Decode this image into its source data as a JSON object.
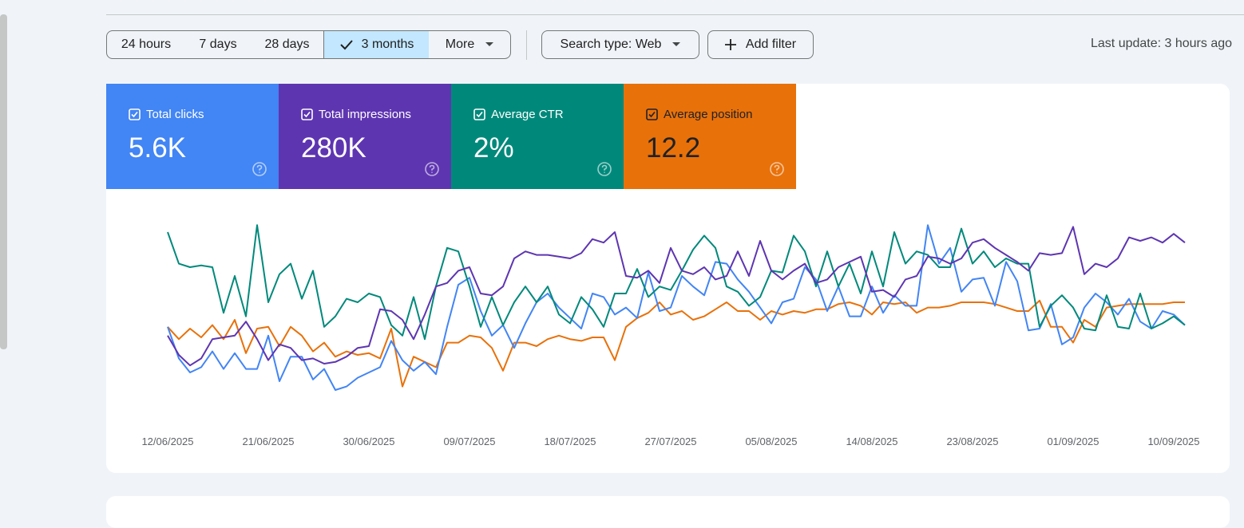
{
  "toolbar": {
    "ranges": [
      "24 hours",
      "7 days",
      "28 days",
      "3 months",
      "More"
    ],
    "search_type": "Search type: Web",
    "add_filter": "Add filter",
    "last_update": "Last update: 3 hours ago"
  },
  "summary": [
    "5.6K",
    "280K",
    "2%",
    "12.2"
  ],
  "chart_data": {
    "type": "line",
    "categories": [
      "12/06/2025",
      null,
      null,
      null,
      null,
      null,
      null,
      null,
      null,
      "21/06/2025",
      null,
      null,
      null,
      null,
      null,
      null,
      null,
      null,
      "30/06/2025",
      null,
      null,
      null,
      null,
      null,
      null,
      null,
      null,
      "09/07/2025",
      null,
      null,
      null,
      null,
      null,
      null,
      null,
      null,
      "18/07/2025",
      null,
      null,
      null,
      null,
      null,
      null,
      null,
      null,
      "27/07/2025",
      null,
      null,
      null,
      null,
      null,
      null,
      null,
      null,
      "05/08/2025",
      null,
      null,
      null,
      null,
      null,
      null,
      null,
      null,
      "14/08/2025",
      null,
      null,
      null,
      null,
      null,
      null,
      null,
      null,
      "23/08/2025",
      null,
      null,
      null,
      null,
      null,
      null,
      null,
      null,
      "01/09/2025",
      null,
      null,
      null,
      null,
      null,
      null,
      null,
      null,
      "10/09/2025",
      null
    ],
    "ylim": [
      0,
      100
    ],
    "series": [
      {
        "name": "Total clicks",
        "color": "#4285f4",
        "values": [
          41,
          23,
          15,
          18,
          27,
          17,
          26,
          17,
          17,
          36,
          10,
          24,
          24,
          11,
          17,
          5,
          7,
          12,
          15,
          18,
          33,
          22,
          16,
          21,
          14,
          41,
          65,
          69,
          50,
          36,
          42,
          29,
          43,
          55,
          60,
          52,
          46,
          40,
          60,
          58,
          48,
          52,
          46,
          72,
          50,
          52,
          70,
          64,
          59,
          78,
          77,
          68,
          61,
          52,
          43,
          55,
          57,
          75,
          68,
          50,
          64,
          47,
          47,
          64,
          49,
          59,
          53,
          53,
          99,
          77,
          86,
          61,
          68,
          69,
          53,
          78,
          67,
          39,
          40,
          54,
          31,
          35,
          52,
          60,
          55,
          48,
          57,
          44,
          40,
          50,
          48,
          42
        ]
      },
      {
        "name": "Total impressions",
        "color": "#5e35b1",
        "values": [
          36,
          25,
          19,
          23,
          34,
          35,
          36,
          44,
          34,
          22,
          31,
          29,
          22,
          23,
          20,
          21,
          24,
          29,
          30,
          51,
          50,
          45,
          34,
          48,
          64,
          66,
          73,
          75,
          60,
          59,
          64,
          80,
          84,
          82,
          82,
          81,
          80,
          83,
          91,
          89,
          95,
          70,
          69,
          73,
          66,
          86,
          73,
          71,
          75,
          68,
          70,
          84,
          70,
          90,
          73,
          68,
          73,
          77,
          66,
          68,
          75,
          78,
          81,
          61,
          62,
          58,
          68,
          70,
          81,
          80,
          77,
          80,
          89,
          91,
          86,
          82,
          78,
          73,
          83,
          82,
          83,
          98,
          71,
          77,
          75,
          80,
          92,
          90,
          92,
          89,
          94,
          89
        ]
      },
      {
        "name": "Average CTR",
        "color": "#00897b",
        "values": [
          95,
          77,
          75,
          76,
          75,
          49,
          70,
          47,
          99,
          55,
          71,
          77,
          57,
          73,
          41,
          47,
          57,
          55,
          60,
          58,
          42,
          36,
          58,
          34,
          64,
          86,
          84,
          64,
          41,
          58,
          42,
          55,
          64,
          55,
          64,
          48,
          43,
          58,
          51,
          41,
          60,
          60,
          74,
          58,
          64,
          62,
          73,
          85,
          93,
          86,
          64,
          61,
          53,
          58,
          73,
          72,
          93,
          84,
          64,
          84,
          64,
          77,
          60,
          84,
          64,
          95,
          77,
          84,
          82,
          75,
          75,
          97,
          77,
          84,
          75,
          80,
          77,
          77,
          41,
          53,
          59,
          52,
          40,
          39,
          59,
          41,
          40,
          60,
          40,
          43,
          47,
          42
        ]
      },
      {
        "name": "Average position",
        "color": "#e8710a",
        "values": [
          41,
          34,
          40,
          35,
          42,
          34,
          45,
          26,
          40,
          41,
          30,
          41,
          36,
          27,
          32,
          24,
          27,
          25,
          26,
          23,
          40,
          7,
          24,
          21,
          18,
          32,
          32,
          36,
          35,
          29,
          16,
          32,
          32,
          30,
          34,
          36,
          34,
          33,
          35,
          35,
          22,
          41,
          46,
          49,
          55,
          48,
          50,
          45,
          47,
          51,
          55,
          50,
          50,
          45,
          50,
          48,
          50,
          49,
          51,
          51,
          54,
          55,
          53,
          48,
          55,
          54,
          55,
          49,
          52,
          52,
          53,
          55,
          55,
          55,
          54,
          52,
          50,
          50,
          56,
          41,
          41,
          32,
          45,
          41,
          52,
          53,
          54,
          54,
          54,
          54,
          55,
          55
        ]
      }
    ]
  }
}
